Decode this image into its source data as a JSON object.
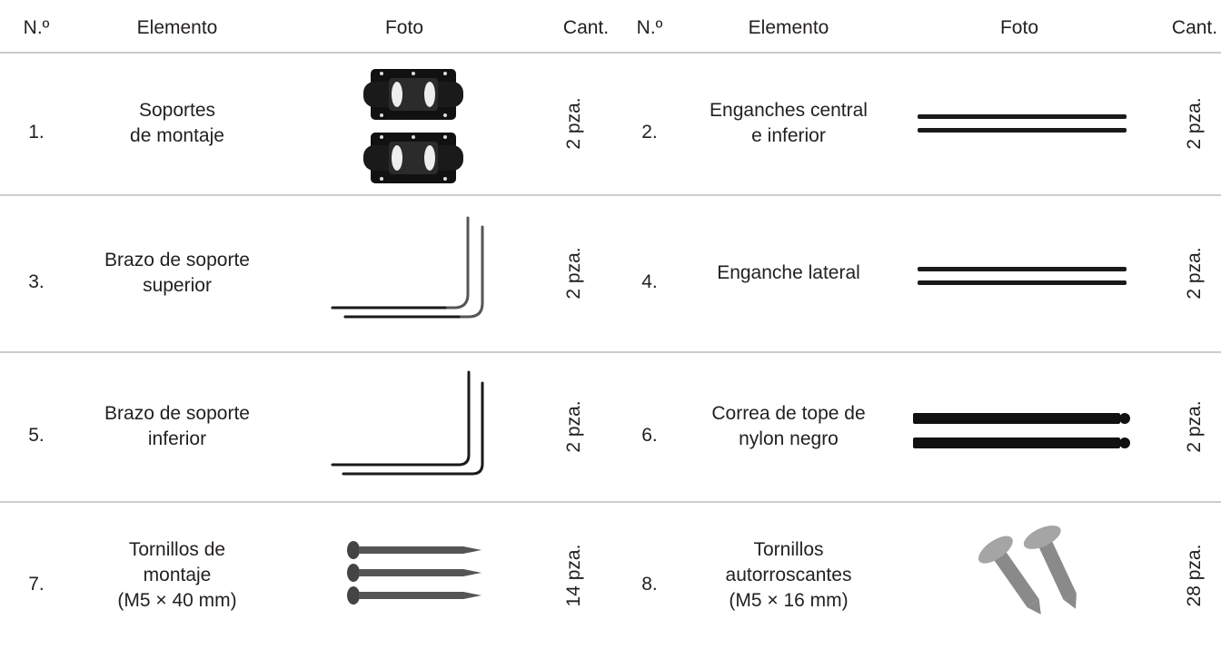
{
  "header": [
    "N.º",
    "Elemento",
    "Foto",
    "Cant.",
    "N.º",
    "Elemento",
    "Foto",
    "Cant."
  ],
  "rows": [
    [
      {
        "number": "1.",
        "element": [
          "Soportes",
          "de montaje"
        ],
        "quantity": "2 pza."
      },
      {
        "number": "2.",
        "element": [
          "Enganches central",
          "e inferior"
        ],
        "quantity": "2 pza."
      }
    ],
    [
      {
        "number": "3.",
        "element": [
          "Brazo de soporte",
          "superior"
        ],
        "quantity": "2 pza."
      },
      {
        "number": "4.",
        "element": [
          "Enganche lateral"
        ],
        "quantity": "2 pza."
      }
    ],
    [
      {
        "number": "5.",
        "element": [
          "Brazo de soporte",
          "inferior"
        ],
        "quantity": "2 pza."
      },
      {
        "number": "6.",
        "element": [
          "Correa de tope de",
          "nylon negro"
        ],
        "quantity": "2 pza."
      }
    ],
    [
      {
        "number": "7.",
        "element": [
          "Tornillos de",
          "montaje",
          "(M5 × 40 mm)"
        ],
        "quantity": "14 pza."
      },
      {
        "number": "8.",
        "element": [
          "Tornillos",
          "autorroscantes",
          "(M5 × 16 mm)"
        ],
        "quantity": "28 pza."
      }
    ]
  ]
}
